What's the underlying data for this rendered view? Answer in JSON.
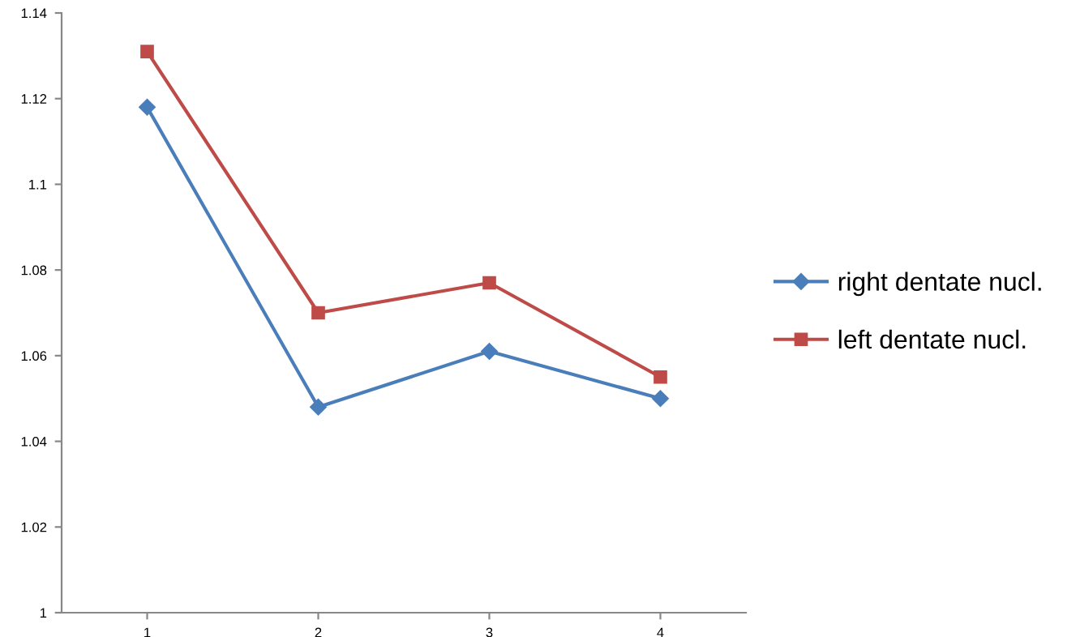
{
  "chart_data": {
    "type": "line",
    "categories": [
      "1",
      "2",
      "3",
      "4"
    ],
    "series": [
      {
        "name": "right dentate nucl.",
        "color": "#4a7ebb",
        "marker": "diamond",
        "values": [
          1.118,
          1.048,
          1.061,
          1.05
        ]
      },
      {
        "name": "left dentate nucl.",
        "color": "#be4b48",
        "marker": "square",
        "values": [
          1.131,
          1.07,
          1.077,
          1.055
        ]
      }
    ],
    "ylim": [
      1,
      1.14
    ],
    "yticks": [
      {
        "value": 1,
        "label": "1"
      },
      {
        "value": 1.02,
        "label": "1.02"
      },
      {
        "value": 1.04,
        "label": "1.04"
      },
      {
        "value": 1.06,
        "label": "1.06"
      },
      {
        "value": 1.08,
        "label": "1.08"
      },
      {
        "value": 1.1,
        "label": "1.1"
      },
      {
        "value": 1.12,
        "label": "1.12"
      },
      {
        "value": 1.14,
        "label": "1.14"
      }
    ],
    "grid": false,
    "legend": "right",
    "line_style": "solid"
  }
}
